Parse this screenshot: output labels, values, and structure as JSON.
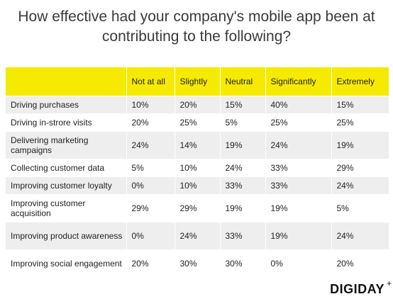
{
  "chart_data": {
    "type": "table",
    "title": "How effective had your company's mobile app been at contributing to the following?",
    "columns": [
      "Not at all",
      "Slightly",
      "Neutral",
      "Significantly",
      "Extremely"
    ],
    "rows": [
      {
        "label": "Driving purchases",
        "values": [
          "10%",
          "20%",
          "15%",
          "40%",
          "15%"
        ]
      },
      {
        "label": "Driving in-strore visits",
        "values": [
          "20%",
          "25%",
          "5%",
          "25%",
          "25%"
        ]
      },
      {
        "label": "Delivering marketing campaigns",
        "values": [
          "24%",
          "14%",
          "19%",
          "24%",
          "19%"
        ]
      },
      {
        "label": "Collecting customer data",
        "values": [
          "5%",
          "10%",
          "24%",
          "33%",
          "29%"
        ]
      },
      {
        "label": "Improving customer loyalty",
        "values": [
          "0%",
          "10%",
          "33%",
          "33%",
          "24%"
        ]
      },
      {
        "label": "Improving customer acquisition",
        "values": [
          "29%",
          "29%",
          "19%",
          "19%",
          "5%"
        ]
      },
      {
        "label": "Improving product awareness",
        "values": [
          "0%",
          "24%",
          "33%",
          "19%",
          "24%"
        ]
      },
      {
        "label": "Improving social engagement",
        "values": [
          "20%",
          "30%",
          "30%",
          "0%",
          "20%"
        ]
      }
    ]
  },
  "brand": {
    "name": "DIGIDAY",
    "mark": "+"
  },
  "colors": {
    "header": "#f6ea00",
    "row_alt": "#eeeeee",
    "text": "#222222"
  }
}
